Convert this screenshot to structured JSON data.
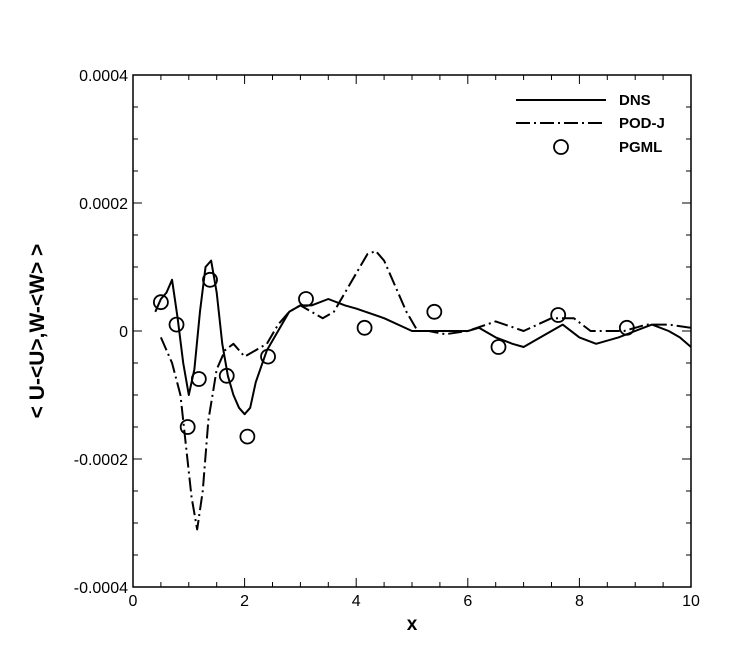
{
  "chart_data": {
    "type": "line",
    "title": "",
    "xlabel": "x",
    "ylabel": "< U-<U>,W-<W> >",
    "xlim": [
      0,
      10
    ],
    "ylim": [
      -0.0004,
      0.0004
    ],
    "x_ticks": [
      "0",
      "2",
      "4",
      "6",
      "8",
      "10"
    ],
    "y_ticks": [
      "-0.0004",
      "-0.0002",
      "0",
      "0.0002",
      "0.0004"
    ],
    "grid": false,
    "legend_position": "top-right",
    "series": [
      {
        "name": "DNS",
        "style": "solid",
        "points": [
          [
            0.4,
            3e-05
          ],
          [
            0.5,
            5e-05
          ],
          [
            0.6,
            6e-05
          ],
          [
            0.7,
            8e-05
          ],
          [
            0.8,
            2e-05
          ],
          [
            0.9,
            -5e-05
          ],
          [
            1.0,
            -0.0001
          ],
          [
            1.1,
            -6e-05
          ],
          [
            1.2,
            3e-05
          ],
          [
            1.3,
            0.0001
          ],
          [
            1.4,
            0.00011
          ],
          [
            1.5,
            6e-05
          ],
          [
            1.6,
            -2e-05
          ],
          [
            1.7,
            -7e-05
          ],
          [
            1.8,
            -0.0001
          ],
          [
            1.9,
            -0.00012
          ],
          [
            2.0,
            -0.00013
          ],
          [
            2.1,
            -0.00012
          ],
          [
            2.2,
            -8e-05
          ],
          [
            2.4,
            -3e-05
          ],
          [
            2.6,
            0.0
          ],
          [
            2.8,
            3e-05
          ],
          [
            3.0,
            4e-05
          ],
          [
            3.2,
            4e-05
          ],
          [
            3.5,
            5e-05
          ],
          [
            3.8,
            4e-05
          ],
          [
            4.0,
            3.5e-05
          ],
          [
            4.5,
            2e-05
          ],
          [
            5.0,
            0.0
          ],
          [
            5.5,
            0.0
          ],
          [
            6.0,
            0.0
          ],
          [
            6.2,
            5e-06
          ],
          [
            6.5,
            -1e-05
          ],
          [
            6.8,
            -2e-05
          ],
          [
            7.0,
            -2.5e-05
          ],
          [
            7.3,
            -1e-05
          ],
          [
            7.7,
            1e-05
          ],
          [
            8.0,
            -1e-05
          ],
          [
            8.3,
            -2e-05
          ],
          [
            8.7,
            -1e-05
          ],
          [
            9.0,
            0.0
          ],
          [
            9.3,
            1e-05
          ],
          [
            9.6,
            0.0
          ],
          [
            9.8,
            -1e-05
          ],
          [
            10.0,
            -2.5e-05
          ]
        ]
      },
      {
        "name": "POD-J",
        "style": "dash-dot",
        "points": [
          [
            0.5,
            -1e-05
          ],
          [
            0.7,
            -5e-05
          ],
          [
            0.85,
            -0.0001
          ],
          [
            0.95,
            -0.00018
          ],
          [
            1.05,
            -0.00026
          ],
          [
            1.15,
            -0.00031
          ],
          [
            1.25,
            -0.00025
          ],
          [
            1.35,
            -0.00014
          ],
          [
            1.5,
            -6e-05
          ],
          [
            1.65,
            -3e-05
          ],
          [
            1.8,
            -2e-05
          ],
          [
            2.0,
            -4e-05
          ],
          [
            2.2,
            -3e-05
          ],
          [
            2.4,
            -2e-05
          ],
          [
            2.6,
            1e-05
          ],
          [
            2.8,
            3e-05
          ],
          [
            3.0,
            4e-05
          ],
          [
            3.2,
            3e-05
          ],
          [
            3.4,
            2e-05
          ],
          [
            3.6,
            3e-05
          ],
          [
            3.8,
            6e-05
          ],
          [
            4.0,
            9e-05
          ],
          [
            4.2,
            0.00012
          ],
          [
            4.35,
            0.000125
          ],
          [
            4.5,
            0.00011
          ],
          [
            4.7,
            7e-05
          ],
          [
            4.9,
            3e-05
          ],
          [
            5.1,
            0.0
          ],
          [
            5.3,
            0.0
          ],
          [
            5.6,
            -5e-06
          ],
          [
            6.0,
            0.0
          ],
          [
            6.5,
            1.5e-05
          ],
          [
            7.0,
            0.0
          ],
          [
            7.5,
            2e-05
          ],
          [
            7.9,
            2e-05
          ],
          [
            8.2,
            0.0
          ],
          [
            8.5,
            0.0
          ],
          [
            8.8,
            0.0
          ],
          [
            9.2,
            1e-05
          ],
          [
            9.6,
            1e-05
          ],
          [
            10.0,
            5e-06
          ]
        ]
      },
      {
        "name": "PGML",
        "style": "open-circle",
        "points": [
          [
            0.5,
            4.5e-05
          ],
          [
            0.78,
            1e-05
          ],
          [
            0.98,
            -0.00015
          ],
          [
            1.18,
            -7.5e-05
          ],
          [
            1.38,
            8e-05
          ],
          [
            1.68,
            -7e-05
          ],
          [
            2.05,
            -0.000165
          ],
          [
            2.42,
            -4e-05
          ],
          [
            3.1,
            5e-05
          ],
          [
            4.15,
            5e-06
          ],
          [
            5.4,
            3e-05
          ],
          [
            6.55,
            -2.5e-05
          ],
          [
            7.62,
            2.5e-05
          ],
          [
            8.85,
            5e-06
          ]
        ]
      }
    ]
  }
}
